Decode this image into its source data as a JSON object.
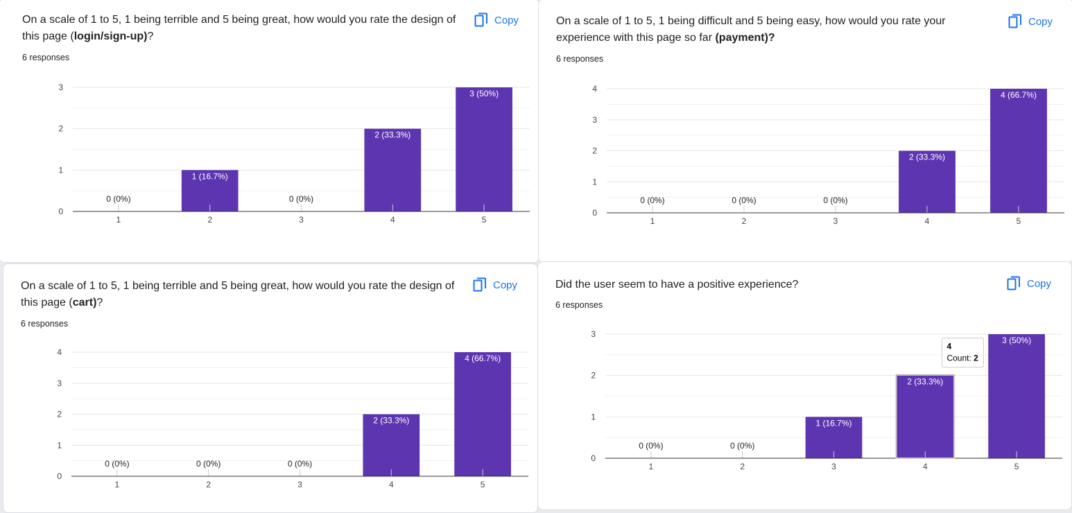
{
  "colors": {
    "bar": "#5e35b1",
    "link": "#1a73e8",
    "text": "#202124",
    "grid": "#e6e6e6"
  },
  "cards": [
    {
      "title_pre": "On a scale of 1 to 5, 1 being terrible and 5 being great, how would you rate the design of this page (",
      "title_bold": "login/sign-up)",
      "title_post": "?",
      "responses": "6 responses",
      "copy_label": "Copy",
      "copy_icon": "copy-icon"
    },
    {
      "title_pre": "On a scale of 1 to 5, 1 being difficult and 5 being easy, how would you rate your experience with this page so far ",
      "title_bold": "(payment)?",
      "title_post": "",
      "responses": "6 responses",
      "copy_label": "Copy",
      "copy_icon": "copy-icon"
    },
    {
      "title_pre": "On a scale of 1 to 5, 1 being terrible and 5 being great, how would you rate the design of this page (",
      "title_bold": "cart)",
      "title_post": "?",
      "responses": "6 responses",
      "copy_label": "Copy",
      "copy_icon": "copy-icon"
    },
    {
      "title_pre": "Did the user seem to have a positive experience?",
      "title_bold": "",
      "title_post": "",
      "responses": "6 responses",
      "copy_label": "Copy",
      "copy_icon": "copy-icon"
    }
  ],
  "chart_data": [
    {
      "type": "bar",
      "categories": [
        "1",
        "2",
        "3",
        "4",
        "5"
      ],
      "values": [
        0,
        1,
        0,
        2,
        3
      ],
      "labels": [
        "0 (0%)",
        "1 (16.7%)",
        "0 (0%)",
        "2 (33.3%)",
        "3 (50%)"
      ],
      "ylim": [
        0,
        3
      ],
      "yticks": [
        0,
        1,
        2,
        3
      ],
      "grid": true
    },
    {
      "type": "bar",
      "categories": [
        "1",
        "2",
        "3",
        "4",
        "5"
      ],
      "values": [
        0,
        0,
        0,
        2,
        4
      ],
      "labels": [
        "0 (0%)",
        "0 (0%)",
        "0 (0%)",
        "2 (33.3%)",
        "4 (66.7%)"
      ],
      "ylim": [
        0,
        4
      ],
      "yticks": [
        0,
        1,
        2,
        3,
        4
      ],
      "grid": true
    },
    {
      "type": "bar",
      "categories": [
        "1",
        "2",
        "3",
        "4",
        "5"
      ],
      "values": [
        0,
        0,
        0,
        2,
        4
      ],
      "labels": [
        "0 (0%)",
        "0 (0%)",
        "0 (0%)",
        "2 (33.3%)",
        "4 (66.7%)"
      ],
      "ylim": [
        0,
        4
      ],
      "yticks": [
        0,
        1,
        2,
        3,
        4
      ],
      "grid": true
    },
    {
      "type": "bar",
      "categories": [
        "1",
        "2",
        "3",
        "4",
        "5"
      ],
      "values": [
        0,
        0,
        1,
        2,
        3
      ],
      "labels": [
        "0 (0%)",
        "0 (0%)",
        "1 (16.7%)",
        "2 (33.3%)",
        "3 (50%)"
      ],
      "ylim": [
        0,
        3
      ],
      "yticks": [
        0,
        1,
        2,
        3
      ],
      "grid": true,
      "tooltip": {
        "category_index": 3,
        "title": "4",
        "count_label": "Count: ",
        "count_value": "2"
      }
    }
  ]
}
